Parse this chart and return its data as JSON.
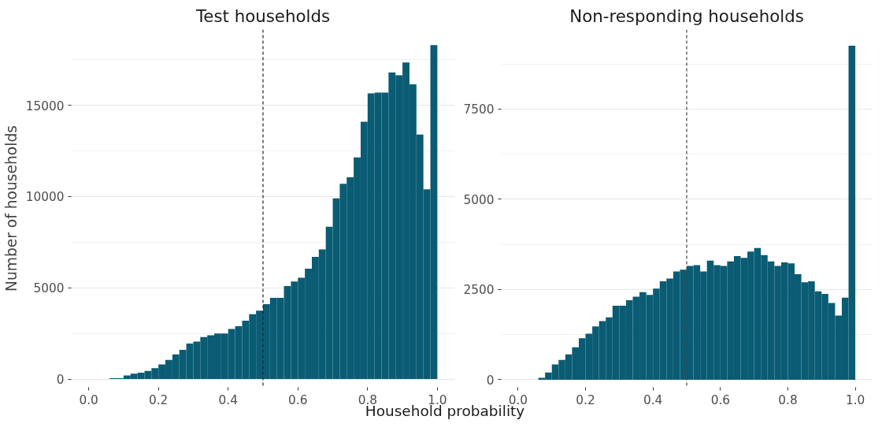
{
  "chart_data": [
    {
      "type": "histogram",
      "title": "Test households",
      "ylabel": "Number of households",
      "xlabel": "Household probability",
      "bins": [
        0,
        0.02,
        0.04,
        0.06,
        0.08,
        0.1,
        0.12,
        0.14,
        0.16,
        0.18,
        0.2,
        0.22,
        0.24,
        0.26,
        0.28,
        0.3,
        0.32,
        0.34,
        0.36,
        0.38,
        0.4,
        0.42,
        0.44,
        0.46,
        0.48,
        0.5,
        0.52,
        0.54,
        0.56,
        0.58,
        0.6,
        0.62,
        0.64,
        0.66,
        0.68,
        0.7,
        0.72,
        0.74,
        0.76,
        0.78,
        0.8,
        0.82,
        0.84,
        0.86,
        0.88,
        0.9,
        0.92,
        0.94,
        0.96,
        0.98,
        1.0
      ],
      "values": [
        0,
        0,
        0,
        50,
        50,
        200,
        300,
        350,
        450,
        600,
        800,
        1050,
        1350,
        1600,
        1950,
        2050,
        2300,
        2400,
        2500,
        2500,
        2750,
        2900,
        3200,
        3550,
        3750,
        4100,
        4450,
        4450,
        5100,
        5350,
        5550,
        6050,
        6700,
        7100,
        8350,
        9900,
        10700,
        11050,
        12150,
        14100,
        15650,
        15700,
        15700,
        16800,
        16650,
        17350,
        16150,
        13400,
        10400,
        18300
      ],
      "color": "#0a5c74",
      "xlim": [
        -0.05,
        1.05
      ],
      "xticks": [
        {
          "value": 0,
          "label": "0.0"
        },
        {
          "value": 0.2,
          "label": "0.2"
        },
        {
          "value": 0.4,
          "label": "0.4"
        },
        {
          "value": 0.6,
          "label": "0.6"
        },
        {
          "value": 0.8,
          "label": "0.8"
        },
        {
          "value": 1,
          "label": "1.0"
        }
      ],
      "ylim": [
        -450,
        19150
      ],
      "yticks": [
        0,
        5000,
        10000,
        15000
      ],
      "grid": "y",
      "ref_lines": [
        {
          "axis": "x",
          "value": 0.5,
          "color": "#222222",
          "line_style": "dashed"
        }
      ]
    },
    {
      "type": "histogram",
      "title": "Non-responding households",
      "bins": [
        0,
        0.02,
        0.04,
        0.06,
        0.08,
        0.1,
        0.12,
        0.14,
        0.16,
        0.18,
        0.2,
        0.22,
        0.24,
        0.26,
        0.28,
        0.3,
        0.32,
        0.34,
        0.36,
        0.38,
        0.4,
        0.42,
        0.44,
        0.46,
        0.48,
        0.5,
        0.52,
        0.54,
        0.56,
        0.58,
        0.6,
        0.62,
        0.64,
        0.66,
        0.68,
        0.7,
        0.72,
        0.74,
        0.76,
        0.78,
        0.8,
        0.82,
        0.84,
        0.86,
        0.88,
        0.9,
        0.92,
        0.94,
        0.96,
        0.98,
        1.0
      ],
      "values": [
        0,
        0,
        0,
        50,
        200,
        425,
        550,
        700,
        900,
        1150,
        1275,
        1475,
        1625,
        1725,
        2050,
        2050,
        2200,
        2300,
        2425,
        2350,
        2525,
        2725,
        2800,
        3000,
        3050,
        3150,
        3175,
        3000,
        3300,
        3175,
        3150,
        3275,
        3425,
        3375,
        3550,
        3650,
        3450,
        3275,
        3150,
        3250,
        3225,
        2925,
        2700,
        2725,
        2450,
        2375,
        2125,
        1775,
        2275,
        9250
      ],
      "color": "#0a5c74",
      "xlim": [
        -0.05,
        1.05
      ],
      "xticks": [
        {
          "value": 0,
          "label": "0.0"
        },
        {
          "value": 0.2,
          "label": "0.2"
        },
        {
          "value": 0.4,
          "label": "0.4"
        },
        {
          "value": 0.6,
          "label": "0.6"
        },
        {
          "value": 0.8,
          "label": "0.8"
        },
        {
          "value": 1,
          "label": "1.0"
        }
      ],
      "ylim": [
        -210,
        9700
      ],
      "yticks": [
        0,
        2500,
        5000,
        7500
      ],
      "grid": "y",
      "ref_lines": [
        {
          "axis": "x",
          "value": 0.5,
          "color": "#444444",
          "line_style": "dashed"
        }
      ]
    }
  ]
}
